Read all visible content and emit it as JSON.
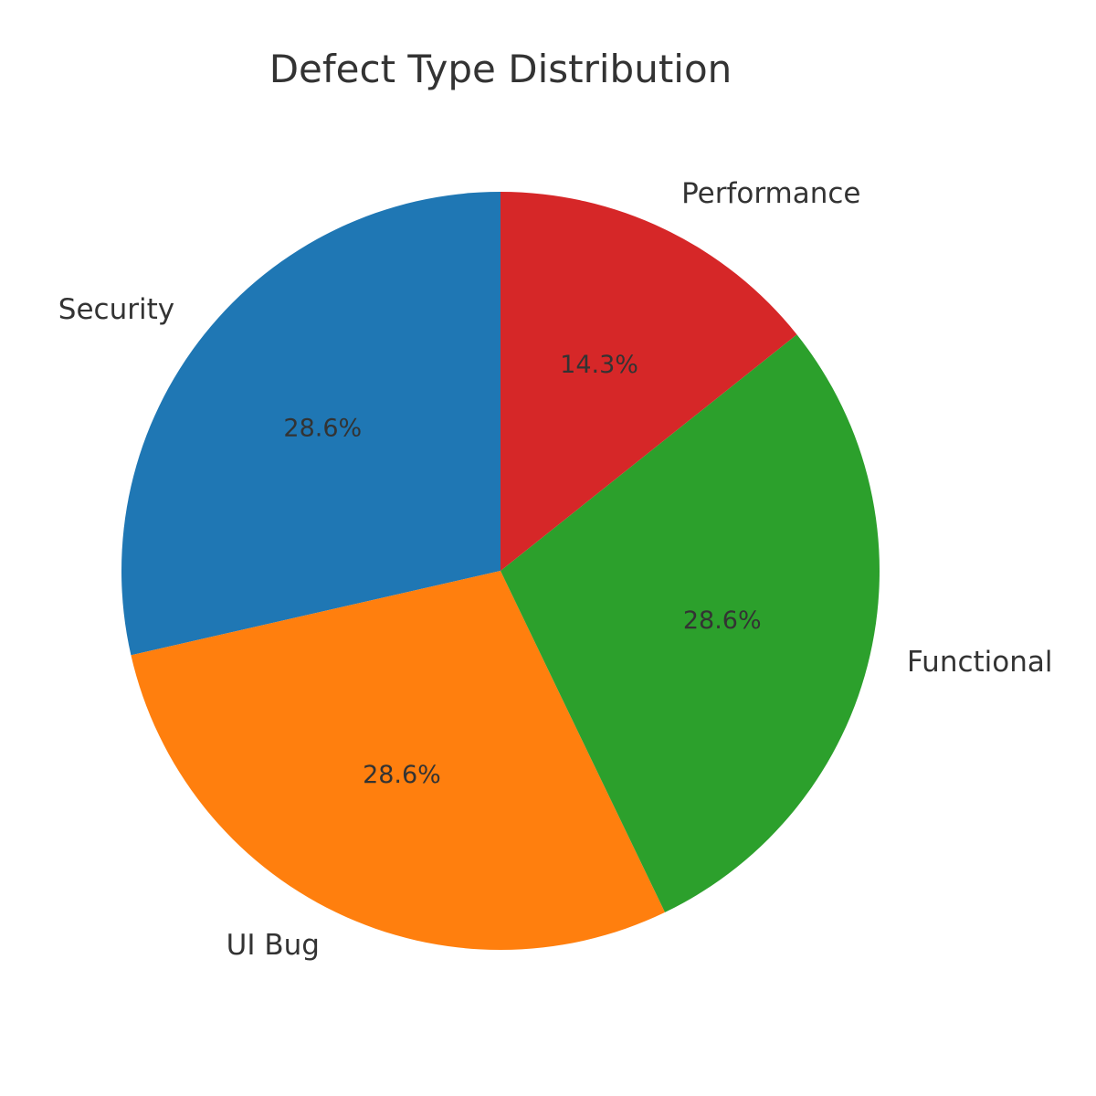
{
  "chart_data": {
    "type": "pie",
    "title": "Defect Type Distribution",
    "start_angle_deg": 90,
    "direction": "counterclockwise",
    "legend": "none",
    "slices": [
      {
        "label": "Security",
        "value": 28.6,
        "pct_label": "28.6%",
        "color": "#1f77b4"
      },
      {
        "label": "UI Bug",
        "value": 28.6,
        "pct_label": "28.6%",
        "color": "#ff7f0e"
      },
      {
        "label": "Functional",
        "value": 28.6,
        "pct_label": "28.6%",
        "color": "#2ca02c"
      },
      {
        "label": "Performance",
        "value": 14.3,
        "pct_label": "14.3%",
        "color": "#d62728"
      }
    ]
  }
}
